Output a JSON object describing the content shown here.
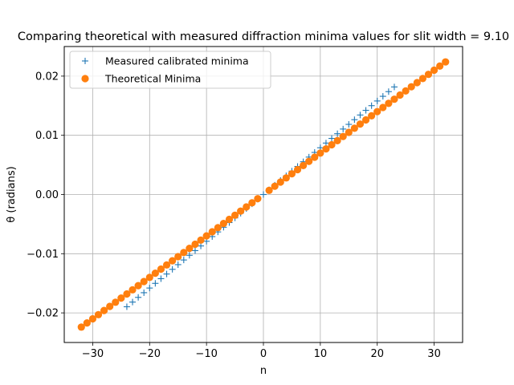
{
  "chart_data": {
    "type": "scatter",
    "title": "Comparing theoretical with measured diffraction minima values for slit width = 9.10",
    "xlabel": "n",
    "ylabel": "θ (radians)",
    "xlim": [
      -35,
      35
    ],
    "ylim": [
      -0.025,
      0.025
    ],
    "xticks": [
      -30,
      -20,
      -10,
      0,
      10,
      20,
      30
    ],
    "xtick_labels": [
      "−30",
      "−20",
      "−10",
      "0",
      "10",
      "20",
      "30"
    ],
    "yticks": [
      -0.02,
      -0.01,
      0.0,
      0.01,
      0.02
    ],
    "ytick_labels": [
      "−0.02",
      "−0.01",
      "0.00",
      "0.01",
      "0.02"
    ],
    "grid": true,
    "legend_position": "upper-left",
    "series": [
      {
        "name": "Measured calibrated minima",
        "marker": "plus",
        "color": "#1f77b4",
        "n_min": -24,
        "n_max": 23,
        "slope": 0.00079,
        "intercept": 0.0,
        "x": [
          -24,
          -23,
          -22,
          -21,
          -20,
          -19,
          -18,
          -17,
          -16,
          -15,
          -14,
          -13,
          -12,
          -11,
          -10,
          -9,
          -8,
          -7,
          -6,
          -5,
          -4,
          -3,
          -2,
          -1,
          0,
          1,
          2,
          3,
          4,
          5,
          6,
          7,
          8,
          9,
          10,
          11,
          12,
          13,
          14,
          15,
          16,
          17,
          18,
          19,
          20,
          21,
          22,
          23
        ],
        "y": [
          -0.01896,
          -0.01817,
          -0.01738,
          -0.01659,
          -0.0158,
          -0.01501,
          -0.01422,
          -0.01343,
          -0.01264,
          -0.01185,
          -0.01106,
          -0.01027,
          -0.00948,
          -0.00869,
          -0.0079,
          -0.00711,
          -0.00632,
          -0.00553,
          -0.00474,
          -0.00395,
          -0.00316,
          -0.00237,
          -0.00158,
          -0.00079,
          0.0,
          0.00079,
          0.00158,
          0.00237,
          0.00316,
          0.00395,
          0.00474,
          0.00553,
          0.00632,
          0.00711,
          0.0079,
          0.00869,
          0.00948,
          0.01027,
          0.01106,
          0.01185,
          0.01264,
          0.01343,
          0.01422,
          0.01501,
          0.0158,
          0.01659,
          0.01738,
          0.01817
        ]
      },
      {
        "name": "Theoretical Minima",
        "marker": "circle",
        "color": "#ff7f0e",
        "x": [
          -32,
          -31,
          -30,
          -29,
          -28,
          -27,
          -26,
          -25,
          -24,
          -23,
          -22,
          -21,
          -20,
          -19,
          -18,
          -17,
          -16,
          -15,
          -14,
          -13,
          -12,
          -11,
          -10,
          -9,
          -8,
          -7,
          -6,
          -5,
          -4,
          -3,
          -2,
          -1,
          1,
          2,
          3,
          4,
          5,
          6,
          7,
          8,
          9,
          10,
          11,
          12,
          13,
          14,
          15,
          16,
          17,
          18,
          19,
          20,
          21,
          22,
          23,
          24,
          25,
          26,
          27,
          28,
          29,
          30,
          31,
          32
        ],
        "y": [
          -0.0224,
          -0.0217,
          -0.021,
          -0.0203,
          -0.0196,
          -0.0189,
          -0.0182,
          -0.0175,
          -0.0168,
          -0.0161,
          -0.0154,
          -0.0147,
          -0.014,
          -0.0133,
          -0.0126,
          -0.0119,
          -0.0112,
          -0.0105,
          -0.0098,
          -0.0091,
          -0.0084,
          -0.0077,
          -0.007,
          -0.0063,
          -0.0056,
          -0.0049,
          -0.0042,
          -0.0035,
          -0.0028,
          -0.0021,
          -0.0014,
          -0.0007,
          0.0007,
          0.0014,
          0.0021,
          0.0028,
          0.0035,
          0.0042,
          0.0049,
          0.0056,
          0.0063,
          0.007,
          0.0077,
          0.0084,
          0.0091,
          0.0098,
          0.0105,
          0.0112,
          0.0119,
          0.0126,
          0.0133,
          0.014,
          0.0147,
          0.0154,
          0.0161,
          0.0168,
          0.0175,
          0.0182,
          0.0189,
          0.0196,
          0.0203,
          0.021,
          0.0217,
          0.0224
        ]
      }
    ]
  }
}
